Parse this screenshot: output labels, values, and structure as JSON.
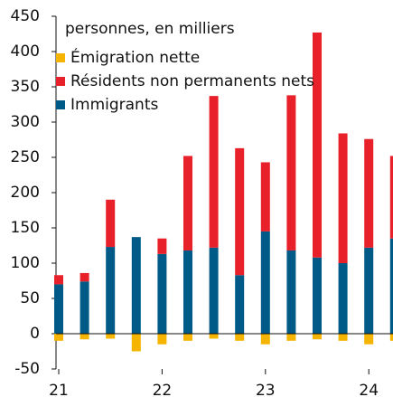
{
  "chart_data": {
    "type": "bar",
    "stacked": true,
    "subtitle": "personnes, en milliers",
    "categories": [
      "21",
      null,
      null,
      null,
      "22",
      null,
      null,
      null,
      "23",
      null,
      null,
      null,
      "24",
      null
    ],
    "series": [
      {
        "name": "Émigration nette",
        "color": "#f5b400",
        "values": [
          -10,
          -8,
          -7,
          -25,
          -15,
          -10,
          -7,
          -10,
          -15,
          -10,
          -8,
          -10,
          -15,
          -10
        ]
      },
      {
        "name": "Résidents non permanents nets",
        "color": "#e8202a",
        "values": [
          13,
          12,
          67,
          0,
          22,
          134,
          215,
          180,
          98,
          220,
          319,
          184,
          154,
          117
        ]
      },
      {
        "name": "Immigrants",
        "color": "#005a87",
        "values": [
          70,
          74,
          123,
          137,
          113,
          118,
          122,
          83,
          145,
          118,
          108,
          100,
          122,
          135
        ]
      }
    ],
    "ylim": [
      -50,
      450
    ],
    "yticks": [
      -50,
      0,
      50,
      100,
      150,
      200,
      250,
      300,
      350,
      400,
      450
    ],
    "legend": "upper left"
  }
}
